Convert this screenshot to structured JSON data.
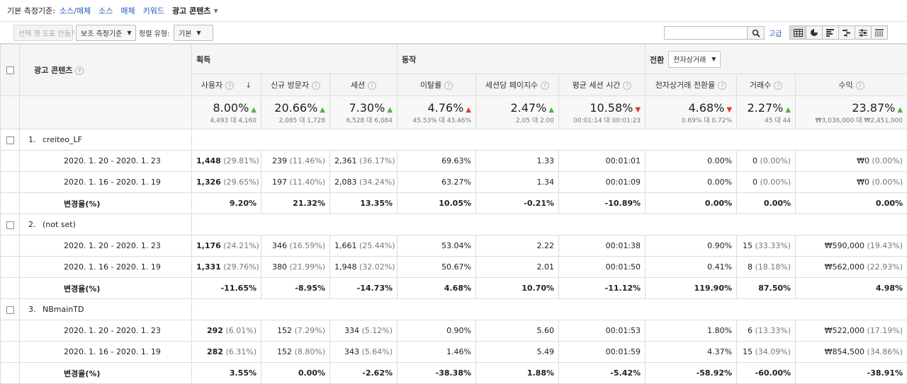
{
  "dimension_bar": {
    "label": "기본 측정기준:",
    "links": [
      "소스/매체",
      "소스",
      "매체",
      "키워드"
    ],
    "selected": "광고 콘텐츠"
  },
  "toolbar": {
    "create_chart": "선택 행 도표 만들기",
    "secondary_dimension": "보조 측정기준",
    "sort_label": "정렬 유형:",
    "sort_value": "기본",
    "search_value": "",
    "advanced": "고급"
  },
  "table": {
    "dimension_header": "광고 콘텐츠",
    "groups": {
      "acquisition": "획득",
      "behavior": "동작",
      "conversion": "전환",
      "conversion_select": "전자상거래"
    },
    "columns": [
      "사용자",
      "신규 방문자",
      "세션",
      "이탈률",
      "세션당 페이지수",
      "평균 세션 시간",
      "전자상거래 전환율",
      "거래수",
      "수익"
    ],
    "totals": [
      {
        "pct": "8.00%",
        "dir": "up",
        "sub": "4,493 대 4,160"
      },
      {
        "pct": "20.66%",
        "dir": "up",
        "sub": "2,085 대 1,728"
      },
      {
        "pct": "7.30%",
        "dir": "up",
        "sub": "6,528 대 6,084"
      },
      {
        "pct": "4.76%",
        "dir": "up-red",
        "sub": "45.53% 대 43.46%"
      },
      {
        "pct": "2.47%",
        "dir": "up",
        "sub": "2.05 대 2.00"
      },
      {
        "pct": "10.58%",
        "dir": "down",
        "sub": "00:01:14 대 00:01:23"
      },
      {
        "pct": "4.68%",
        "dir": "down",
        "sub": "0.69% 대 0.72%"
      },
      {
        "pct": "2.27%",
        "dir": "up",
        "sub": "45 대 44"
      },
      {
        "pct": "23.87%",
        "dir": "up",
        "sub": "₩3,036,000 대 ₩2,451,000"
      }
    ],
    "entries": [
      {
        "index": "1.",
        "name": "creiteo_LF",
        "rows": [
          {
            "label": "2020. 1. 20 - 2020. 1. 23",
            "cells": [
              [
                "1,448",
                "(29.81%)"
              ],
              [
                "239",
                "(11.46%)"
              ],
              [
                "2,361",
                "(36.17%)"
              ],
              [
                "69.63%",
                ""
              ],
              [
                "1.33",
                ""
              ],
              [
                "00:01:01",
                ""
              ],
              [
                "0.00%",
                ""
              ],
              [
                "0",
                "(0.00%)"
              ],
              [
                "₩0",
                "(0.00%)"
              ]
            ]
          },
          {
            "label": "2020. 1. 16 - 2020. 1. 19",
            "cells": [
              [
                "1,326",
                "(29.65%)"
              ],
              [
                "197",
                "(11.40%)"
              ],
              [
                "2,083",
                "(34.24%)"
              ],
              [
                "63.27%",
                ""
              ],
              [
                "1.34",
                ""
              ],
              [
                "00:01:09",
                ""
              ],
              [
                "0.00%",
                ""
              ],
              [
                "0",
                "(0.00%)"
              ],
              [
                "₩0",
                "(0.00%)"
              ]
            ]
          },
          {
            "label": "변경율(%)",
            "change": true,
            "cells": [
              [
                "9.20%",
                ""
              ],
              [
                "21.32%",
                ""
              ],
              [
                "13.35%",
                ""
              ],
              [
                "10.05%",
                ""
              ],
              [
                "-0.21%",
                ""
              ],
              [
                "-10.89%",
                ""
              ],
              [
                "0.00%",
                ""
              ],
              [
                "0.00%",
                ""
              ],
              [
                "0.00%",
                ""
              ]
            ]
          }
        ]
      },
      {
        "index": "2.",
        "name": "(not set)",
        "rows": [
          {
            "label": "2020. 1. 20 - 2020. 1. 23",
            "cells": [
              [
                "1,176",
                "(24.21%)"
              ],
              [
                "346",
                "(16.59%)"
              ],
              [
                "1,661",
                "(25.44%)"
              ],
              [
                "53.04%",
                ""
              ],
              [
                "2.22",
                ""
              ],
              [
                "00:01:38",
                ""
              ],
              [
                "0.90%",
                ""
              ],
              [
                "15",
                "(33.33%)"
              ],
              [
                "₩590,000",
                "(19.43%)"
              ]
            ]
          },
          {
            "label": "2020. 1. 16 - 2020. 1. 19",
            "cells": [
              [
                "1,331",
                "(29.76%)"
              ],
              [
                "380",
                "(21.99%)"
              ],
              [
                "1,948",
                "(32.02%)"
              ],
              [
                "50.67%",
                ""
              ],
              [
                "2.01",
                ""
              ],
              [
                "00:01:50",
                ""
              ],
              [
                "0.41%",
                ""
              ],
              [
                "8",
                "(18.18%)"
              ],
              [
                "₩562,000",
                "(22.93%)"
              ]
            ]
          },
          {
            "label": "변경율(%)",
            "change": true,
            "cells": [
              [
                "-11.65%",
                ""
              ],
              [
                "-8.95%",
                ""
              ],
              [
                "-14.73%",
                ""
              ],
              [
                "4.68%",
                ""
              ],
              [
                "10.70%",
                ""
              ],
              [
                "-11.12%",
                ""
              ],
              [
                "119.90%",
                ""
              ],
              [
                "87.50%",
                ""
              ],
              [
                "4.98%",
                ""
              ]
            ]
          }
        ]
      },
      {
        "index": "3.",
        "name": "NBmainTD",
        "rows": [
          {
            "label": "2020. 1. 20 - 2020. 1. 23",
            "cells": [
              [
                "292",
                "(6.01%)"
              ],
              [
                "152",
                "(7.29%)"
              ],
              [
                "334",
                "(5.12%)"
              ],
              [
                "0.90%",
                ""
              ],
              [
                "5.60",
                ""
              ],
              [
                "00:01:53",
                ""
              ],
              [
                "1.80%",
                ""
              ],
              [
                "6",
                "(13.33%)"
              ],
              [
                "₩522,000",
                "(17.19%)"
              ]
            ]
          },
          {
            "label": "2020. 1. 16 - 2020. 1. 19",
            "cells": [
              [
                "282",
                "(6.31%)"
              ],
              [
                "152",
                "(8.80%)"
              ],
              [
                "343",
                "(5.64%)"
              ],
              [
                "1.46%",
                ""
              ],
              [
                "5.49",
                ""
              ],
              [
                "00:01:59",
                ""
              ],
              [
                "4.37%",
                ""
              ],
              [
                "15",
                "(34.09%)"
              ],
              [
                "₩854,500",
                "(34.86%)"
              ]
            ]
          },
          {
            "label": "변경율(%)",
            "change": true,
            "cells": [
              [
                "3.55%",
                ""
              ],
              [
                "0.00%",
                ""
              ],
              [
                "-2.62%",
                ""
              ],
              [
                "-38.38%",
                ""
              ],
              [
                "1.88%",
                ""
              ],
              [
                "-5.42%",
                ""
              ],
              [
                "-58.92%",
                ""
              ],
              [
                "-60.00%",
                ""
              ],
              [
                "-38.91%",
                ""
              ]
            ]
          }
        ]
      }
    ]
  },
  "colors": {
    "link": "#1a5ab8",
    "up": "#58b04b",
    "down": "#e53935"
  }
}
